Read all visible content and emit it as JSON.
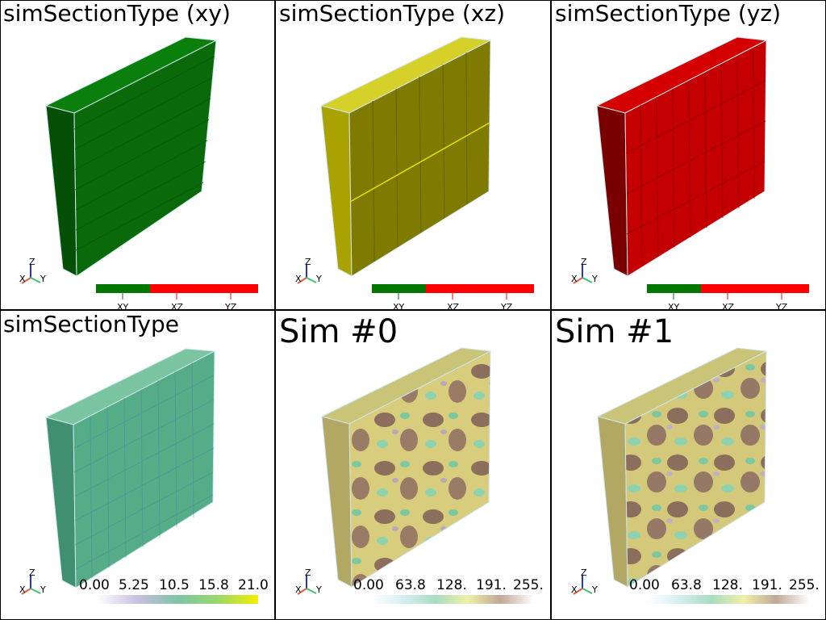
{
  "panels": [
    {
      "title": "simSectionType (xy)",
      "categories": [
        "XY",
        "XZ",
        "YZ"
      ],
      "colors": [
        "#007800",
        "#ff0000",
        "#ff0000"
      ]
    },
    {
      "title": "simSectionType (xz)",
      "categories": [
        "XY",
        "XZ",
        "YZ"
      ],
      "colors": [
        "#007800",
        "#ff0000",
        "#ff0000"
      ]
    },
    {
      "title": "simSectionType (yz)",
      "categories": [
        "XY",
        "XZ",
        "YZ"
      ],
      "colors": [
        "#007800",
        "#ff0000",
        "#ff0000"
      ]
    },
    {
      "title": "simSectionType",
      "ticks": [
        "0.00",
        "5.25",
        "10.5",
        "15.8",
        "21.0"
      ]
    },
    {
      "title": "Sim #0",
      "ticks": [
        "0.00",
        "63.8",
        "128.",
        "191.",
        "255."
      ]
    },
    {
      "title": "Sim #1",
      "ticks": [
        "0.00",
        "63.8",
        "128.",
        "191.",
        "255."
      ]
    }
  ],
  "axes": {
    "x": "X",
    "y": "Y",
    "z": "Z"
  },
  "block_colors": {
    "xy": "#0a6a0a",
    "xz": "#7f7a00",
    "yz": "#c40000",
    "section": "#55ad88"
  }
}
